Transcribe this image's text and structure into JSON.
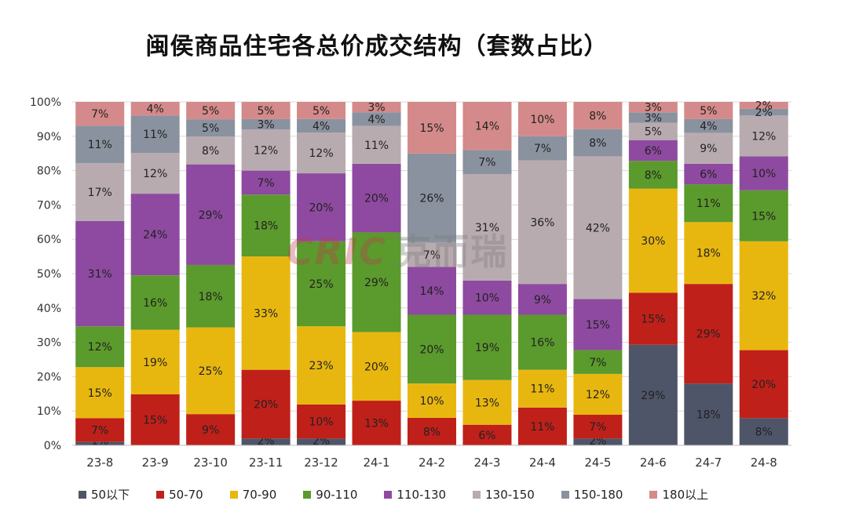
{
  "title": "闽侯商品住宅各总价成交结构（套数占比）",
  "watermark": {
    "brand": "CRIC",
    "cn": "克而瑞"
  },
  "chart_data": {
    "type": "bar",
    "stacked": true,
    "title": "闽侯商品住宅各总价成交结构（套数占比）",
    "xlabel": "",
    "ylabel": "",
    "ylim": [
      0,
      100
    ],
    "yticks": [
      "0%",
      "10%",
      "20%",
      "30%",
      "40%",
      "50%",
      "60%",
      "70%",
      "80%",
      "90%",
      "100%"
    ],
    "grid": true,
    "legend_position": "bottom",
    "categories": [
      "23-8",
      "23-9",
      "23-10",
      "23-11",
      "23-12",
      "24-1",
      "24-2",
      "24-3",
      "24-4",
      "24-5",
      "24-6",
      "24-7",
      "24-8"
    ],
    "series": [
      {
        "name": "50以下",
        "color": "#4f5568",
        "values": [
          1,
          0,
          0,
          2,
          2,
          0,
          0,
          0,
          0,
          2,
          29,
          18,
          8
        ]
      },
      {
        "name": "50-70",
        "color": "#c0201a",
        "values": [
          7,
          15,
          9,
          20,
          10,
          13,
          8,
          6,
          11,
          7,
          15,
          29,
          20
        ]
      },
      {
        "name": "70-90",
        "color": "#e8b70f",
        "values": [
          15,
          19,
          25,
          33,
          23,
          20,
          10,
          13,
          11,
          12,
          30,
          18,
          32
        ]
      },
      {
        "name": "90-110",
        "color": "#5b9a2c",
        "values": [
          12,
          16,
          18,
          18,
          25,
          29,
          20,
          19,
          16,
          7,
          8,
          11,
          15
        ]
      },
      {
        "name": "110-130",
        "color": "#8e4aa0",
        "values": [
          31,
          24,
          29,
          7,
          20,
          20,
          14,
          10,
          9,
          15,
          6,
          6,
          10
        ]
      },
      {
        "name": "130-150",
        "color": "#b8abb0",
        "values": [
          17,
          12,
          8,
          12,
          12,
          11,
          7,
          31,
          36,
          42,
          5,
          9,
          12
        ]
      },
      {
        "name": "150-180",
        "color": "#8a929f",
        "values": [
          11,
          11,
          5,
          3,
          4,
          4,
          26,
          7,
          7,
          8,
          3,
          4,
          2
        ]
      },
      {
        "name": "180以上",
        "color": "#d48a8a",
        "values": [
          7,
          4,
          5,
          5,
          5,
          3,
          15,
          14,
          10,
          8,
          3,
          5,
          2
        ]
      }
    ]
  }
}
